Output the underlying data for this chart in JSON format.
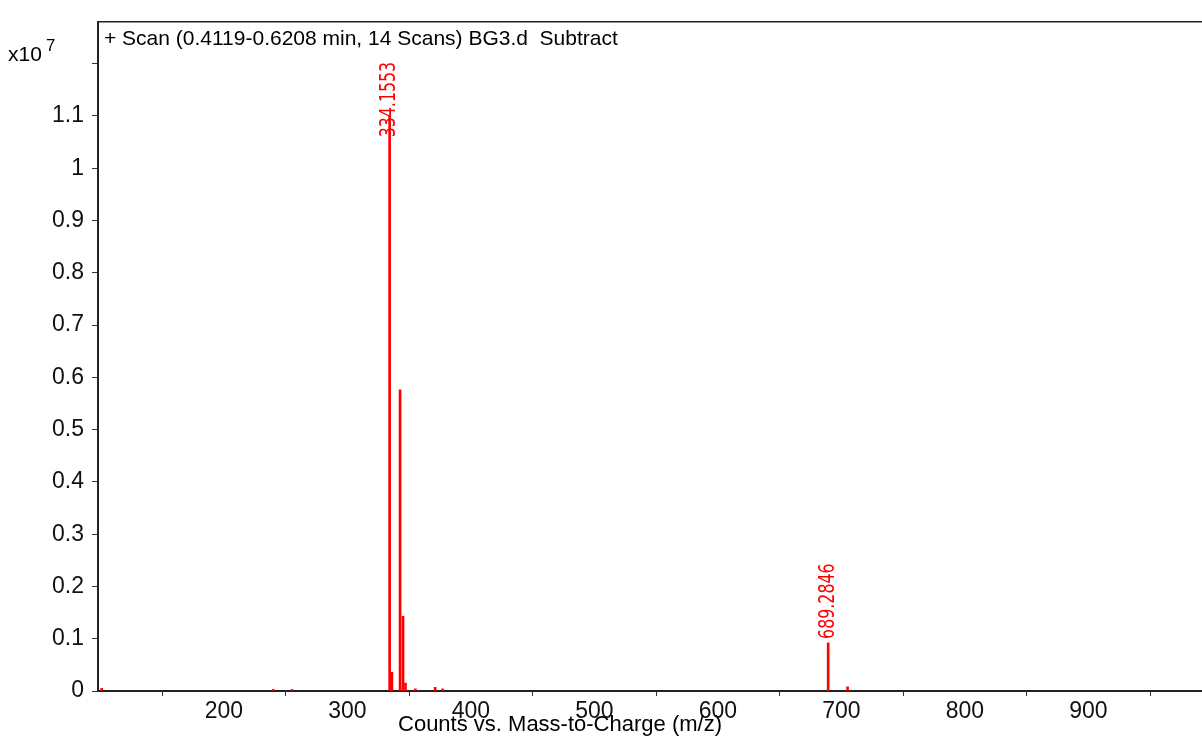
{
  "chart_data": {
    "type": "bar",
    "title": "+ Scan (0.4119-0.6208 min, 14 Scans) BG3.d  Subtract",
    "xlabel": "Counts vs. Mass-to-Charge (m/z)",
    "ylabel": "x10$^{7}$",
    "x": [
      101,
      240,
      255,
      334.1553,
      336,
      342.6,
      345,
      347,
      355,
      371,
      377,
      689.2846,
      705
    ],
    "series": [
      {
        "color": "#ff0000",
        "values": [
          0.005,
          0.003,
          0.003,
          1.1,
          0.036,
          0.576,
          0.143,
          0.015,
          0.004,
          0.007,
          0.004,
          0.092,
          0.008
        ]
      }
    ],
    "xlim": [
      98,
      992
    ],
    "xticks": [
      200,
      300,
      400,
      500,
      600,
      700,
      800,
      900
    ],
    "ylim": [
      0,
      1.28
    ],
    "yticks": [
      0,
      0.1,
      0.2,
      0.3,
      0.4,
      0.5,
      0.6,
      0.7,
      0.8,
      0.9,
      1,
      1.1,
      {
        "value": 1.2,
        "label": null
      }
    ],
    "annotations": [
      {
        "text": "334.1553",
        "x": 334.1553,
        "y": 1.1
      },
      {
        "text": "689.2846",
        "x": 689.2846,
        "y": 0.092
      }
    ],
    "grid": false,
    "legend": false
  }
}
